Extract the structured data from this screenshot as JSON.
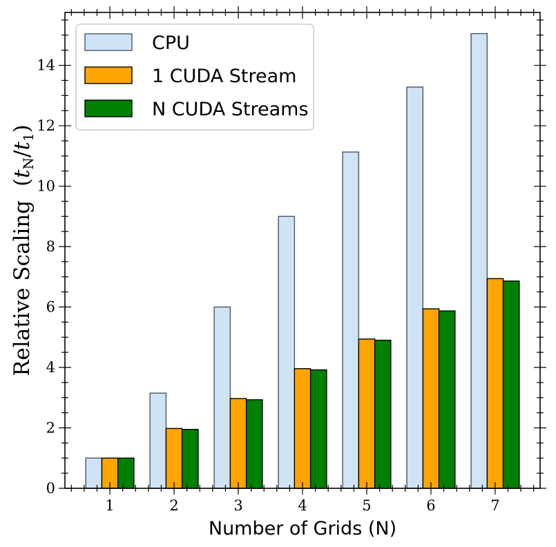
{
  "chart_data": {
    "type": "bar",
    "categories": [
      "1",
      "2",
      "3",
      "4",
      "5",
      "6",
      "7"
    ],
    "series": [
      {
        "name": "CPU",
        "values": [
          1.0,
          3.15,
          6.0,
          9.0,
          11.13,
          13.28,
          15.05
        ],
        "color": "#cfe3f7",
        "edge": "#4a5560"
      },
      {
        "name": "1 CUDA Stream",
        "values": [
          1.0,
          1.98,
          2.97,
          3.96,
          4.94,
          5.94,
          6.94
        ],
        "color": "#ffa500",
        "edge": "#000000"
      },
      {
        "name": "N CUDA Streams",
        "values": [
          1.0,
          1.95,
          2.93,
          3.92,
          4.9,
          5.87,
          6.86
        ],
        "color": "#008000",
        "edge": "#000000"
      }
    ],
    "xlabel": "Number of Grids (N)",
    "ylabel": "Relative Scaling",
    "ylabel_math": "(tN/t1)",
    "ylim": [
      0,
      15.75
    ],
    "yticks": [
      0,
      2,
      4,
      6,
      8,
      10,
      12,
      14
    ],
    "xlim": [
      0.3,
      7.7
    ],
    "grid": false,
    "legend_position": "top-left"
  }
}
